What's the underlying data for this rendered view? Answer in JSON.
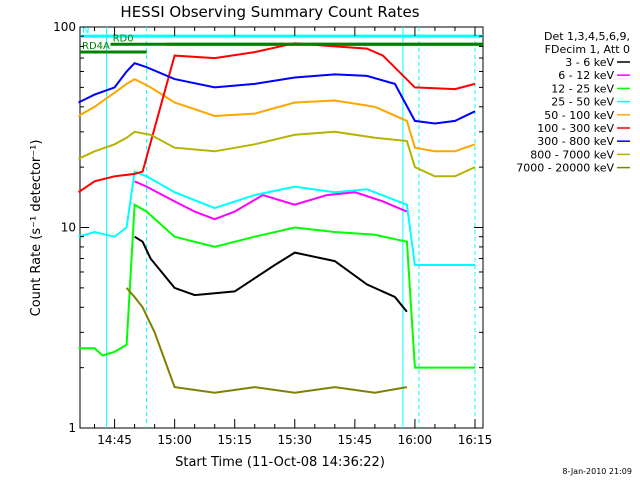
{
  "chart_data": {
    "type": "line",
    "title": "HESSI Observing Summary Count Rates",
    "xlabel": "Start Time (11-Oct-08 14:36:22)",
    "ylabel": "Count Rate (s⁻¹ detector⁻¹)",
    "ylim": [
      1,
      100
    ],
    "y_scale": "log",
    "xlim": [
      "14:36:22",
      "16:17:00"
    ],
    "x_ticks": [
      "14:45",
      "15:00",
      "15:15",
      "15:30",
      "15:45",
      "16:00",
      "16:15"
    ],
    "y_tick_labels": [
      "1",
      "10",
      "100"
    ],
    "grid": false,
    "legend_position": "right",
    "legend_header": [
      "Det 1,3,4,5,6,9,",
      "FDecim 1, Att 0"
    ],
    "series": [
      {
        "name": "3 - 6 keV",
        "color": "#000000",
        "x": [
          "14:50",
          "14:52",
          "14:54",
          "15:00",
          "15:05",
          "15:15",
          "15:25",
          "15:30",
          "15:40",
          "15:48",
          "15:55",
          "15:58"
        ],
        "y": [
          9,
          8.5,
          7,
          5,
          4.6,
          4.8,
          6.5,
          7.5,
          6.8,
          5.2,
          4.5,
          3.8
        ]
      },
      {
        "name": "6 - 12 keV",
        "color": "#ff00ff",
        "x": [
          "14:50",
          "14:53",
          "15:00",
          "15:05",
          "15:10",
          "15:15",
          "15:22",
          "15:30",
          "15:38",
          "15:45",
          "15:52",
          "15:58"
        ],
        "y": [
          17,
          16,
          13.5,
          12,
          11,
          12,
          14.5,
          13,
          14.5,
          15,
          13.5,
          12
        ]
      },
      {
        "name": "12 - 25 keV",
        "color": "#00ff00",
        "x": [
          "14:36",
          "14:40",
          "14:42",
          "14:45",
          "14:48",
          "14:50",
          "14:53",
          "15:00",
          "15:10",
          "15:20",
          "15:30",
          "15:40",
          "15:50",
          "15:58",
          "16:00",
          "16:10",
          "16:15"
        ],
        "y": [
          2.5,
          2.5,
          2.3,
          2.4,
          2.6,
          13,
          12,
          9,
          8,
          9,
          10,
          9.5,
          9.2,
          8.5,
          2,
          2,
          2
        ]
      },
      {
        "name": "25 - 50 keV",
        "color": "#00ffff",
        "x": [
          "14:36",
          "14:40",
          "14:45",
          "14:48",
          "14:50",
          "14:53",
          "15:00",
          "15:10",
          "15:20",
          "15:30",
          "15:40",
          "15:48",
          "15:58",
          "16:00",
          "16:10",
          "16:15"
        ],
        "y": [
          9,
          9.5,
          9,
          10,
          19,
          18,
          15,
          12.5,
          14.5,
          16,
          15,
          15.5,
          13,
          6.5,
          6.5,
          6.5
        ]
      },
      {
        "name": "50 - 100 keV",
        "color": "#ffa500",
        "x": [
          "14:36",
          "14:40",
          "14:45",
          "14:48",
          "14:50",
          "14:54",
          "15:00",
          "15:10",
          "15:20",
          "15:30",
          "15:40",
          "15:50",
          "15:58",
          "16:00",
          "16:05",
          "16:10",
          "16:15"
        ],
        "y": [
          36,
          40,
          47,
          52,
          55,
          50,
          42,
          36,
          37,
          42,
          43,
          40,
          34,
          25,
          24,
          24,
          26
        ]
      },
      {
        "name": "100 - 300 keV",
        "color": "#ff0000",
        "x": [
          "14:36",
          "14:40",
          "14:45",
          "14:50",
          "14:52",
          "15:00",
          "15:10",
          "15:20",
          "15:30",
          "15:40",
          "15:48",
          "15:52",
          "16:00",
          "16:10",
          "16:15"
        ],
        "y": [
          15,
          17,
          18,
          18.5,
          19,
          72,
          70,
          75,
          83,
          80,
          78,
          72,
          50,
          49,
          52
        ]
      },
      {
        "name": "300 - 800 keV",
        "color": "#0000ff",
        "x": [
          "14:36",
          "14:40",
          "14:45",
          "14:48",
          "14:50",
          "14:53",
          "15:00",
          "15:10",
          "15:20",
          "15:30",
          "15:40",
          "15:48",
          "15:55",
          "16:00",
          "16:05",
          "16:10",
          "16:15"
        ],
        "y": [
          42,
          46,
          50,
          60,
          66,
          63,
          55,
          50,
          52,
          56,
          58,
          57,
          52,
          34,
          33,
          34,
          38
        ]
      },
      {
        "name": "800 - 7000 keV",
        "color": "#b4b400",
        "x": [
          "14:36",
          "14:40",
          "14:45",
          "14:48",
          "14:50",
          "14:54",
          "15:00",
          "15:10",
          "15:20",
          "15:30",
          "15:40",
          "15:50",
          "15:58",
          "16:00",
          "16:05",
          "16:10",
          "16:15"
        ],
        "y": [
          22,
          24,
          26,
          28,
          30,
          29,
          25,
          24,
          26,
          29,
          30,
          28,
          27,
          20,
          18,
          18,
          20
        ]
      },
      {
        "name": "7000 - 20000 keV",
        "color": "#808000",
        "x": [
          "14:48",
          "14:50",
          "14:52",
          "14:55",
          "15:00",
          "15:10",
          "15:20",
          "15:30",
          "15:40",
          "15:50",
          "15:58"
        ],
        "y": [
          5,
          4.5,
          4,
          3,
          1.6,
          1.5,
          1.6,
          1.5,
          1.6,
          1.5,
          1.6
        ]
      }
    ],
    "flags": [
      {
        "label": "N",
        "color": "#00ffff",
        "x": [
          "14:36:22",
          "16:17:00"
        ],
        "y": 90
      },
      {
        "label": "RD0",
        "color": "#008000",
        "x": [
          "14:44",
          "16:17"
        ],
        "y": 82
      },
      {
        "label": "RD4A",
        "color": "#008000",
        "x": [
          "14:36:22",
          "14:53"
        ],
        "y": 75
      },
      {
        "label": "",
        "color": "#008000",
        "x": [
          "14:58",
          "16:17"
        ],
        "y": 82
      }
    ],
    "vertical_lines": [
      {
        "x": "14:43",
        "color": "#00ffff",
        "style": "solid"
      },
      {
        "x": "14:53",
        "color": "#00ffff",
        "style": "dashed"
      },
      {
        "x": "15:57",
        "color": "#00ffff",
        "style": "solid"
      },
      {
        "x": "16:01",
        "color": "#00ffff",
        "style": "dashed"
      },
      {
        "x": "16:15",
        "color": "#00ffff",
        "style": "dashed"
      }
    ]
  },
  "footer": {
    "timestamp": "8-Jan-2010 21:09"
  }
}
